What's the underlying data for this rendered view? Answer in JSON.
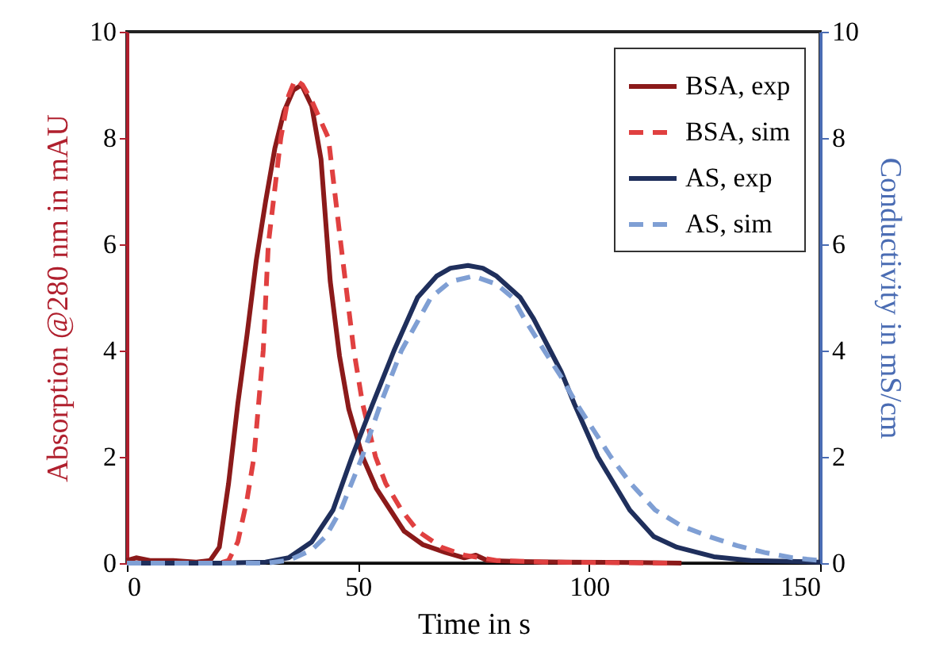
{
  "chart_data": {
    "type": "line",
    "xlabel": "Time in s",
    "ylabel": "Absorption @280 nm in mAU",
    "y2label": "Conductivity in mS/cm",
    "xlim": [
      0,
      150
    ],
    "xticks": [
      0,
      50,
      100,
      150
    ],
    "ylim": [
      0,
      10
    ],
    "yticks": [
      0,
      2,
      4,
      6,
      8,
      10
    ],
    "y2lim": [
      0,
      10
    ],
    "y2ticks": [
      0,
      2,
      4,
      6,
      8,
      10
    ],
    "legend": "top right",
    "grid": false,
    "marker": "none",
    "series": [
      {
        "name": "BSA, exp",
        "color": "#8b1a1a",
        "line_style": "solid",
        "x": [
          0,
          2,
          5,
          10,
          15,
          18,
          20,
          22,
          24,
          26,
          28,
          30,
          32,
          34,
          36,
          37.8,
          40,
          42,
          44,
          46,
          48,
          51,
          54,
          57,
          60,
          64,
          69,
          73,
          75.5,
          78,
          85,
          95,
          110,
          120
        ],
        "values": [
          0.05,
          0.1,
          0.05,
          0.05,
          0.02,
          0.05,
          0.3,
          1.5,
          3.0,
          4.3,
          5.7,
          6.8,
          7.8,
          8.5,
          8.9,
          9.0,
          8.6,
          7.6,
          5.3,
          3.9,
          2.9,
          2.0,
          1.4,
          1.0,
          0.6,
          0.35,
          0.2,
          0.1,
          0.15,
          0.05,
          0.03,
          0.02,
          0.01,
          0
        ]
      },
      {
        "name": "BSA, sim",
        "color": "#e04040",
        "line_style": "dashed",
        "x": [
          0,
          20,
          22,
          24,
          26,
          27.5,
          29.5,
          30.6,
          33.3,
          35,
          36.4,
          38,
          40,
          43.6,
          46.3,
          49.1,
          51,
          53.8,
          56,
          59.4,
          63,
          68,
          73,
          80,
          90,
          118
        ],
        "values": [
          0,
          0,
          0.05,
          0.4,
          1.2,
          2,
          4,
          6,
          8,
          8.8,
          9.1,
          9.0,
          8.7,
          8,
          6,
          4,
          3,
          2,
          1.5,
          1,
          0.6,
          0.3,
          0.15,
          0.05,
          0.02,
          0
        ]
      },
      {
        "name": "AS, exp",
        "color": "#1f2f5c",
        "line_style": "solid",
        "axis": "y2",
        "x": [
          0,
          20,
          30,
          35,
          40,
          44.6,
          48.7,
          53.2,
          57.8,
          62.9,
          67,
          70,
          73.8,
          77,
          80,
          85.1,
          88,
          91.6,
          94,
          96.8,
          101.9,
          108.8,
          114,
          119,
          127,
          135,
          150
        ],
        "values": [
          0,
          0,
          0.02,
          0.1,
          0.4,
          1,
          2,
          3,
          4,
          5,
          5.4,
          5.55,
          5.6,
          5.55,
          5.4,
          5,
          4.6,
          4,
          3.6,
          3,
          2,
          1,
          0.5,
          0.3,
          0.12,
          0.05,
          0.02
        ]
      },
      {
        "name": "AS, sim",
        "color": "#7f9fd4",
        "line_style": "dashed",
        "axis": "y2",
        "x": [
          0,
          30,
          35,
          40,
          43,
          46.3,
          50.9,
          54.9,
          59.4,
          65.8,
          70,
          75,
          80,
          83.4,
          86,
          90.3,
          94,
          97.3,
          101,
          104.7,
          109,
          114.3,
          120,
          126,
          132,
          138,
          144,
          150
        ],
        "values": [
          0,
          0,
          0.05,
          0.25,
          0.5,
          1,
          2,
          3,
          4,
          5,
          5.3,
          5.4,
          5.25,
          5,
          4.6,
          4,
          3.5,
          3,
          2.5,
          2,
          1.5,
          1,
          0.7,
          0.5,
          0.33,
          0.2,
          0.1,
          0.05
        ]
      }
    ]
  }
}
